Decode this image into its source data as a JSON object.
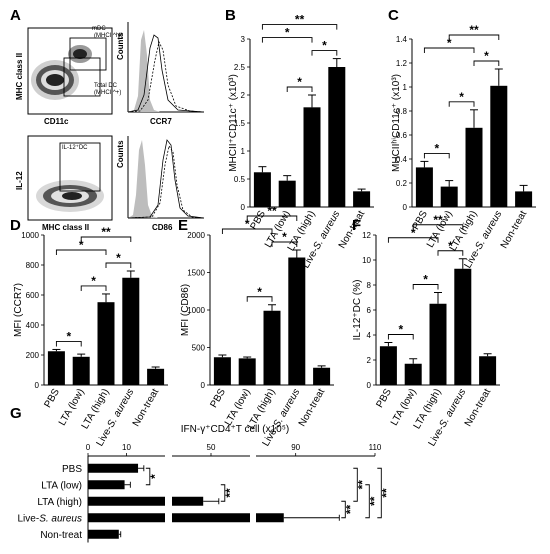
{
  "panel_letters": [
    "A",
    "B",
    "C",
    "D",
    "E",
    "F",
    "G"
  ],
  "panel_a": {
    "dot1": {
      "x_label": "CD11c",
      "y_label": "MHC class II",
      "gate_upper": "mDC\n(MHCII^hi)",
      "gate_lower": "Total DC\n(MHCII^+)"
    },
    "hist1": {
      "x_label": "CCR7",
      "y_label": "Counts"
    },
    "dot2": {
      "x_label": "MHC class II",
      "y_label": "IL-12",
      "gate": "IL-12⁺DC"
    },
    "hist2": {
      "x_label": "CD86",
      "y_label": "Counts"
    }
  },
  "chart_data": [
    {
      "panel": "B",
      "type": "bar",
      "categories": [
        "PBS",
        "LTA (low)",
        "LTA (high)",
        "Live-S. aureus",
        "Non-treat"
      ],
      "values": [
        0.62,
        0.47,
        1.78,
        2.5,
        0.28
      ],
      "errors": [
        0.1,
        0.09,
        0.22,
        0.15,
        0.04
      ],
      "ylabel": "MHCII⁺CD11c⁺ (x10³)",
      "ylim": [
        0,
        3
      ],
      "yticks": [
        "0",
        "0.5",
        "1",
        "1.5",
        "2",
        "2.5",
        "3"
      ],
      "significance": [
        {
          "from": 0,
          "to": 2,
          "label": "*"
        },
        {
          "from": 1,
          "to": 2,
          "label": "*"
        },
        {
          "from": 2,
          "to": 3,
          "label": "*"
        },
        {
          "from": 0,
          "to": 3,
          "label": "**"
        }
      ]
    },
    {
      "panel": "C",
      "type": "bar",
      "categories": [
        "PBS",
        "LTA (low)",
        "LTA (high)",
        "Live-S. aureus",
        "Non-treat"
      ],
      "values": [
        0.33,
        0.17,
        0.66,
        1.01,
        0.13
      ],
      "errors": [
        0.05,
        0.05,
        0.15,
        0.14,
        0.05
      ],
      "ylabel": "MHCII^hiCD11c⁺ (x10³)",
      "ylim": [
        0,
        1.4
      ],
      "yticks": [
        "0",
        "0.2",
        "0.4",
        "0.6",
        "0.8",
        "1",
        "1.2",
        "1.4"
      ],
      "significance": [
        {
          "from": 0,
          "to": 1,
          "label": "*"
        },
        {
          "from": 0,
          "to": 2,
          "label": "*"
        },
        {
          "from": 1,
          "to": 2,
          "label": "*"
        },
        {
          "from": 2,
          "to": 3,
          "label": "*"
        },
        {
          "from": 1,
          "to": 3,
          "label": "**"
        }
      ]
    },
    {
      "panel": "D",
      "type": "bar",
      "categories": [
        "PBS",
        "LTA (low)",
        "LTA (high)",
        "Live-S. aureus",
        "Non-treat"
      ],
      "values": [
        225,
        188,
        552,
        715,
        108
      ],
      "errors": [
        12,
        18,
        55,
        45,
        12
      ],
      "ylabel": "MFI (CCR7)",
      "ylim": [
        0,
        1000
      ],
      "yticks": [
        "0",
        "200",
        "400",
        "600",
        "800",
        "1000"
      ],
      "significance": [
        {
          "from": 0,
          "to": 1,
          "label": "*"
        },
        {
          "from": 0,
          "to": 2,
          "label": "*"
        },
        {
          "from": 1,
          "to": 2,
          "label": "*"
        },
        {
          "from": 2,
          "to": 3,
          "label": "*"
        },
        {
          "from": 1,
          "to": 3,
          "label": "**"
        }
      ]
    },
    {
      "panel": "E",
      "type": "bar",
      "categories": [
        "PBS",
        "LTA (low)",
        "LTA (high)",
        "Live-S. aureus",
        "Non-treat"
      ],
      "values": [
        370,
        355,
        990,
        1700,
        230
      ],
      "errors": [
        30,
        18,
        80,
        100,
        25
      ],
      "ylabel": "MFI (CD86)",
      "ylim": [
        0,
        2000
      ],
      "yticks": [
        "0",
        "500",
        "1000",
        "1500",
        "2000"
      ],
      "significance": [
        {
          "from": 0,
          "to": 2,
          "label": "*"
        },
        {
          "from": 1,
          "to": 2,
          "label": "*"
        },
        {
          "from": 2,
          "to": 3,
          "label": "*"
        },
        {
          "from": 1,
          "to": 3,
          "label": "**"
        }
      ]
    },
    {
      "panel": "F",
      "type": "bar",
      "categories": [
        "PBS",
        "LTA (low)",
        "LTA (high)",
        "Live-S. aureus",
        "Non-treat"
      ],
      "values": [
        3.1,
        1.7,
        6.5,
        9.3,
        2.3
      ],
      "errors": [
        0.3,
        0.4,
        0.9,
        0.8,
        0.2
      ],
      "ylabel": "IL-12⁺DC (%)",
      "ylim": [
        0,
        12
      ],
      "yticks": [
        "0",
        "2",
        "4",
        "6",
        "8",
        "10",
        "12"
      ],
      "significance": [
        {
          "from": 0,
          "to": 1,
          "label": "*"
        },
        {
          "from": 0,
          "to": 2,
          "label": "*"
        },
        {
          "from": 1,
          "to": 2,
          "label": "*"
        },
        {
          "from": 2,
          "to": 3,
          "label": "*"
        },
        {
          "from": 1,
          "to": 3,
          "label": "**"
        }
      ]
    },
    {
      "panel": "G",
      "type": "bar",
      "orientation": "horizontal",
      "broken_axis": true,
      "categories": [
        "PBS",
        "LTA (low)",
        "LTA (high)",
        "Live-S. aureus",
        "Non-treat"
      ],
      "values": [
        13,
        9.5,
        48,
        87,
        8
      ],
      "errors": [
        1.5,
        1.5,
        4,
        14,
        0.5
      ],
      "xlabel": "IFN-γ⁺CD4⁺T cell (x10⁵)",
      "xticks": [
        "0",
        "10",
        "50",
        "90",
        "110"
      ],
      "significance": [
        {
          "from": 0,
          "to": 1,
          "label": "*"
        },
        {
          "from": 0,
          "to": 2,
          "label": "**"
        },
        {
          "from": 1,
          "to": 2,
          "label": "**"
        },
        {
          "from": 2,
          "to": 3,
          "label": "**"
        },
        {
          "from": 0,
          "to": 3,
          "label": "**"
        },
        {
          "from": 1,
          "to": 3,
          "label": "**"
        }
      ]
    }
  ]
}
